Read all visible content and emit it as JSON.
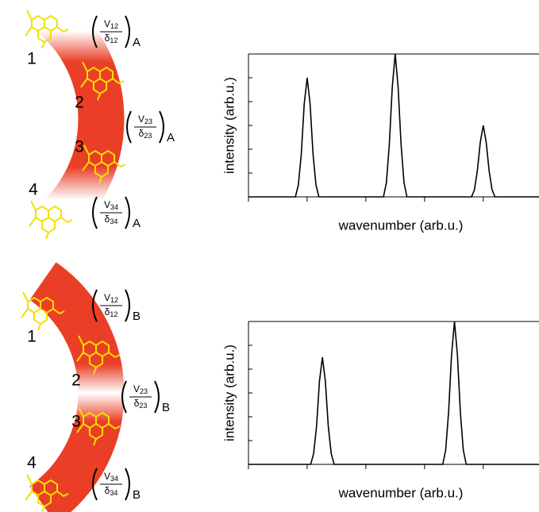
{
  "chart_data": [
    {
      "type": "line",
      "xlabel": "wavenumber (arb.u.)",
      "ylabel": "intensity (arb.u.)",
      "color": "#000000",
      "x": [
        0,
        0.8,
        0.85,
        0.9,
        0.95,
        1,
        1.05,
        1.1,
        1.15,
        1.2,
        2.3,
        2.35,
        2.4,
        2.45,
        2.5,
        2.55,
        2.6,
        2.65,
        2.7,
        3.8,
        3.85,
        3.9,
        3.95,
        4,
        4.05,
        4.1,
        4.15,
        4.2,
        4.95
      ],
      "values": [
        0,
        0,
        0.5,
        1.8,
        3.9,
        5,
        3.9,
        1.8,
        0.5,
        0,
        0,
        0.6,
        2.2,
        4.6,
        6,
        4.6,
        2.2,
        0.6,
        0,
        0,
        0.3,
        1.1,
        2.3,
        3,
        2.3,
        1.1,
        0.3,
        0,
        0
      ],
      "xlim": [
        0,
        4.95
      ],
      "xticks": [
        0,
        1,
        2,
        3,
        4
      ],
      "ylim": [
        0,
        6
      ],
      "yticks": [
        0,
        1,
        2,
        3,
        4,
        5,
        6
      ]
    },
    {
      "type": "line",
      "xlabel": "wavenumber (arb.u.)",
      "ylabel": "intensity (arb.u.)",
      "color": "#000000",
      "x": [
        0,
        1.06,
        1.11,
        1.16,
        1.21,
        1.26,
        1.31,
        1.36,
        1.41,
        1.46,
        3.31,
        3.36,
        3.41,
        3.46,
        3.51,
        3.56,
        3.61,
        3.66,
        3.71,
        4.95
      ],
      "values": [
        0,
        0,
        0.45,
        1.6,
        3.5,
        4.5,
        3.5,
        1.6,
        0.45,
        0,
        0,
        0.6,
        2.2,
        4.6,
        6,
        4.6,
        2.2,
        0.6,
        0,
        0
      ],
      "xlim": [
        0,
        4.95
      ],
      "xticks": [
        0,
        1,
        2,
        3,
        4
      ],
      "ylim": [
        0,
        6
      ],
      "yticks": [
        0,
        1,
        2,
        3,
        4,
        5,
        6
      ]
    }
  ],
  "diagrams": [
    {
      "sites": [
        "1",
        "2",
        "3",
        "4"
      ],
      "couplings": [
        {
          "num": "V",
          "num_sub": "12",
          "den": "δ",
          "den_sub": "12",
          "subscript": "A"
        },
        {
          "num": "V",
          "num_sub": "23",
          "den": "δ",
          "den_sub": "23",
          "subscript": "A"
        },
        {
          "num": "V",
          "num_sub": "34",
          "den": "δ",
          "den_sub": "34",
          "subscript": "A"
        }
      ]
    },
    {
      "sites": [
        "1",
        "2",
        "3",
        "4"
      ],
      "couplings": [
        {
          "num": "V",
          "num_sub": "12",
          "den": "δ",
          "den_sub": "12",
          "subscript": "B"
        },
        {
          "num": "V",
          "num_sub": "23",
          "den": "δ",
          "den_sub": "23",
          "subscript": "B"
        },
        {
          "num": "V",
          "num_sub": "34",
          "den": "δ",
          "den_sub": "34",
          "subscript": "B"
        }
      ]
    }
  ]
}
